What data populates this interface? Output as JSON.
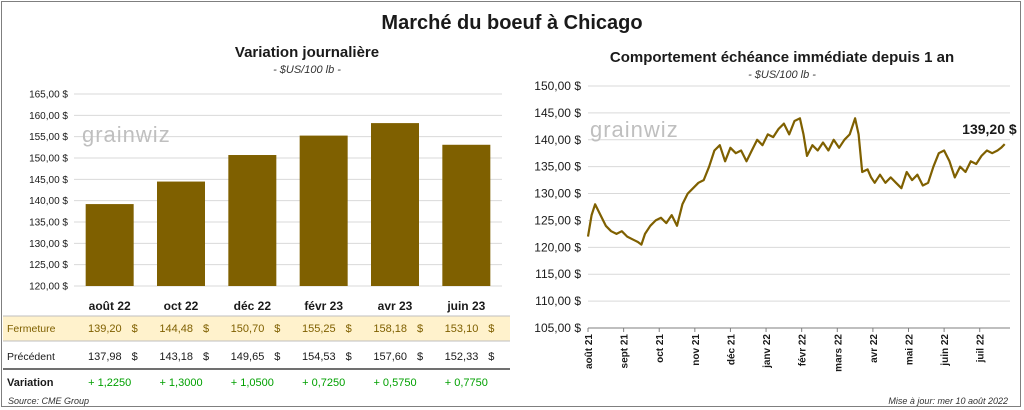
{
  "title": "Marché du boeuf à Chicago",
  "source": "Source: CME Group",
  "updated": "Mise à jour: mer 10 août 2022",
  "watermark": "grainwiz",
  "colors": {
    "bar": "#7f6000",
    "line": "#7f6000",
    "highlight": "#fff2cc",
    "positive": "#00a000"
  },
  "chart_data": [
    {
      "type": "bar",
      "title": "Variation journalière",
      "subtitle": "- $US/100 lb -",
      "categories": [
        "août 22",
        "oct 22",
        "déc 22",
        "févr 23",
        "avr 23",
        "juin 23"
      ],
      "values": [
        139.2,
        144.48,
        150.7,
        155.25,
        158.18,
        153.1
      ],
      "ylim": [
        120,
        165
      ],
      "yticks": [
        "120,00 $",
        "125,00 $",
        "130,00 $",
        "135,00 $",
        "140,00 $",
        "145,00 $",
        "150,00 $",
        "155,00 $",
        "160,00 $",
        "165,00 $"
      ],
      "grid": true,
      "table": {
        "rows": [
          {
            "label": "Fermeture",
            "values": [
              "139,20",
              "144,48",
              "150,70",
              "155,25",
              "158,18",
              "153,10"
            ],
            "unit": "$"
          },
          {
            "label": "Précédent",
            "values": [
              "137,98",
              "143,18",
              "149,65",
              "154,53",
              "157,60",
              "152,33"
            ],
            "unit": "$"
          },
          {
            "label": "Variation",
            "values": [
              "+ 1,2250",
              "+ 1,3000",
              "+ 1,0500",
              "+ 0,7250",
              "+ 0,5750",
              "+ 0,7750"
            ]
          }
        ]
      }
    },
    {
      "type": "line",
      "title": "Comportement  échéance immédiate depuis 1 an",
      "subtitle": "- $US/100 lb -",
      "ylim": [
        105,
        150
      ],
      "yticks": [
        "105,00 $",
        "110,00 $",
        "115,00 $",
        "120,00 $",
        "125,00 $",
        "130,00 $",
        "135,00 $",
        "140,00 $",
        "145,00 $",
        "150,00 $"
      ],
      "xticks": [
        "août 21",
        "sept 21",
        "oct 21",
        "nov 21",
        "déc 21",
        "janv 22",
        "févr 22",
        "mars 22",
        "avr 22",
        "mai 22",
        "juin 22",
        "juil 22"
      ],
      "last_label": "139,20 $",
      "grid": true,
      "series": [
        {
          "x": [
            0,
            0.1,
            0.2,
            0.35,
            0.5,
            0.65,
            0.8,
            0.95,
            1.1,
            1.25,
            1.4,
            1.5,
            1.6,
            1.75,
            1.9,
            2.05,
            2.2,
            2.35,
            2.5,
            2.65,
            2.8,
            2.95,
            3.1,
            3.25,
            3.4,
            3.55,
            3.7,
            3.85,
            4.0,
            4.15,
            4.3,
            4.45,
            4.6,
            4.75,
            4.9,
            5.05,
            5.2,
            5.35,
            5.5,
            5.65,
            5.8,
            5.95,
            6.05,
            6.15,
            6.3,
            6.45,
            6.6,
            6.75,
            6.9,
            7.05,
            7.2,
            7.35,
            7.5,
            7.6,
            7.7,
            7.85,
            7.95,
            8.05,
            8.2,
            8.35,
            8.5,
            8.65,
            8.8,
            8.95,
            9.1,
            9.25,
            9.4,
            9.55,
            9.7,
            9.85,
            10.0,
            10.15,
            10.3,
            10.45,
            10.6,
            10.75,
            10.9,
            11.05,
            11.2,
            11.35,
            11.5,
            11.6,
            11.7
          ],
          "y": [
            122,
            126,
            128,
            126,
            124,
            123,
            122.5,
            123,
            122,
            121.5,
            121,
            120.5,
            122.5,
            124,
            125,
            125.5,
            124.5,
            126,
            124,
            128,
            130,
            131,
            132,
            132.5,
            135,
            138,
            139,
            136,
            138.5,
            137.5,
            138,
            136,
            138,
            140,
            139,
            141,
            140.5,
            142,
            143,
            141,
            143.5,
            144,
            141,
            137,
            139,
            138,
            139.5,
            138,
            140,
            138.5,
            140,
            141,
            144,
            141,
            134,
            134.5,
            133,
            132,
            133.5,
            132,
            133,
            132,
            131,
            134,
            132.5,
            133.5,
            131.5,
            132,
            135,
            137.5,
            138,
            136,
            133,
            135,
            134,
            136,
            135.5,
            137,
            138,
            137.5,
            138,
            138.5,
            139.2
          ]
        }
      ]
    }
  ]
}
